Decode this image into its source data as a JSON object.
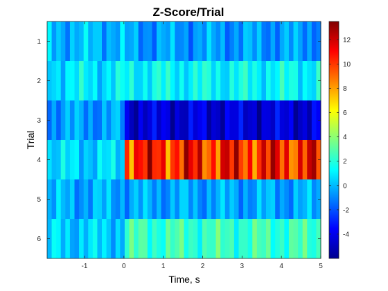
{
  "chart_data": {
    "type": "heatmap",
    "title": "Z-Score/Trial",
    "xlabel": "Time, s",
    "ylabel": "Trial",
    "xlim": [
      -1.95,
      5.0
    ],
    "x_ticks": [
      -1,
      0,
      1,
      2,
      3,
      4,
      5
    ],
    "y_categories": [
      "1",
      "2",
      "3",
      "4",
      "5",
      "6"
    ],
    "colormap": "jet",
    "clim": [
      -6,
      13.5
    ],
    "colorbar_ticks": [
      -4,
      -2,
      0,
      2,
      4,
      6,
      8,
      10,
      12
    ],
    "time_bins_per_trial": 60,
    "trials": [
      {
        "trial": "1",
        "z_baseline": 0.0,
        "z_response": -0.6
      },
      {
        "trial": "2",
        "z_baseline": 0.9,
        "z_response": 1.3
      },
      {
        "trial": "3",
        "z_baseline": -0.6,
        "z_response": -4.3
      },
      {
        "trial": "4",
        "z_baseline": 0.5,
        "z_response": 10.5
      },
      {
        "trial": "5",
        "z_baseline": -0.3,
        "z_response": -0.4
      },
      {
        "trial": "6",
        "z_baseline": 0.4,
        "z_response": 2.4
      }
    ]
  }
}
